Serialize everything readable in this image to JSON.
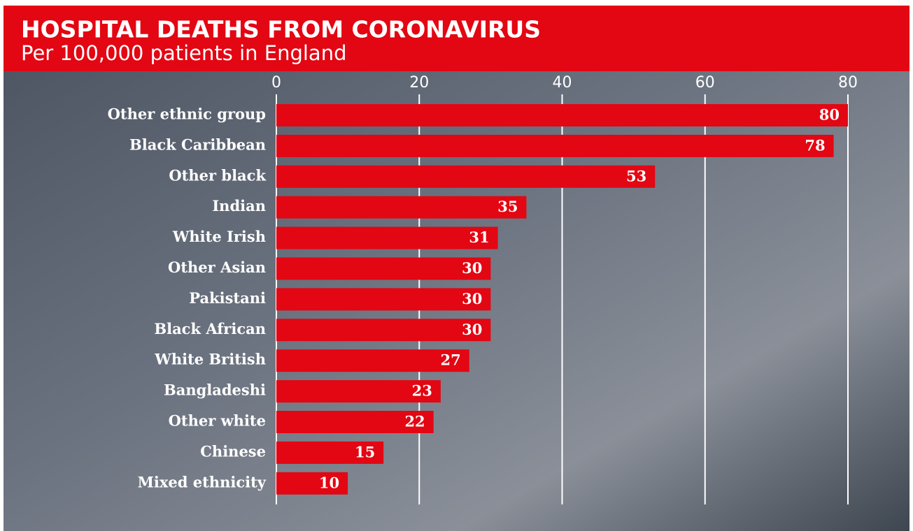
{
  "chart_data": {
    "type": "bar",
    "orientation": "horizontal",
    "title": "HOSPITAL DEATHS FROM CORONAVIRUS",
    "subtitle": "Per 100,000 patients in England",
    "categories": [
      "Other ethnic group",
      "Black Caribbean",
      "Other black",
      "Indian",
      "White Irish",
      "Other Asian",
      "Pakistani",
      "Black African",
      "White British",
      "Bangladeshi",
      "Other white",
      "Chinese",
      "Mixed ethnicity"
    ],
    "values": [
      80,
      78,
      53,
      35,
      31,
      30,
      30,
      30,
      27,
      23,
      22,
      15,
      10
    ],
    "color": "#e30613",
    "xlim": [
      0,
      80
    ],
    "xticks": [
      0,
      20,
      40,
      60,
      80
    ],
    "grid": true
  }
}
